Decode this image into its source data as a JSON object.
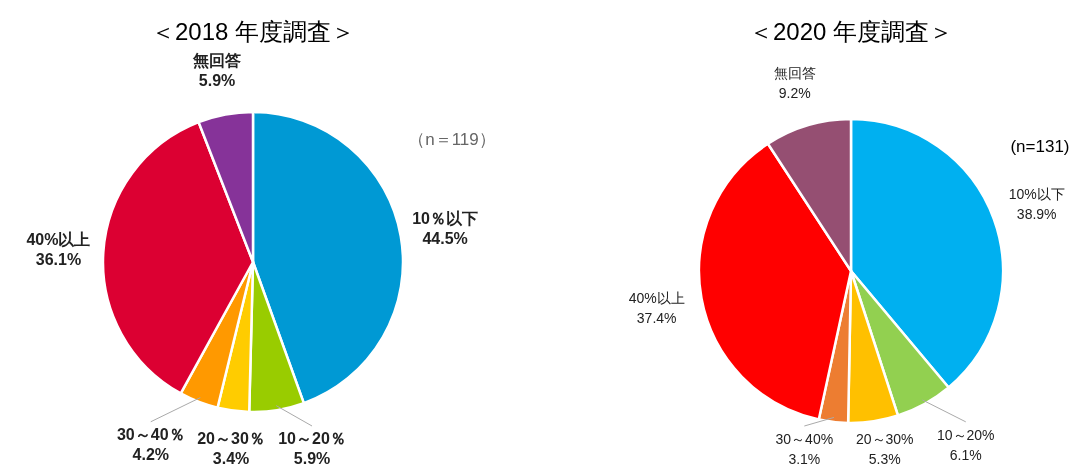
{
  "chart_data": [
    {
      "type": "pie",
      "title": "＜2018 年度調査＞",
      "categories": [
        "10％以下",
        "10～20％",
        "20～30％",
        "30～40％",
        "40%以上",
        "無回答"
      ],
      "values": [
        44.5,
        5.9,
        3.4,
        4.2,
        36.1,
        5.9
      ],
      "colors": [
        "#0099d4",
        "#99cc00",
        "#ffcc00",
        "#ff9900",
        "#dc0032",
        "#863399"
      ],
      "value_labels": [
        "44.5%",
        "5.9%",
        "3.4%",
        "4.2%",
        "36.1%",
        "5.9%"
      ],
      "annotations": [
        "（n＝119）"
      ]
    },
    {
      "type": "pie",
      "title": "＜2020 年度調査＞",
      "categories": [
        "10%以下",
        "10～20%",
        "20～30%",
        "30～40%",
        "40%以上",
        "無回答"
      ],
      "values": [
        38.9,
        6.1,
        5.3,
        3.1,
        37.4,
        9.2
      ],
      "colors": [
        "#00b0f0",
        "#92d050",
        "#ffc000",
        "#ed7d31",
        "#ff0000",
        "#954f72"
      ],
      "value_labels": [
        "38.9%",
        "6.1%",
        "5.3%",
        "3.1%",
        "37.4%",
        "9.2%"
      ],
      "annotations": [
        "(n=131)"
      ]
    }
  ]
}
